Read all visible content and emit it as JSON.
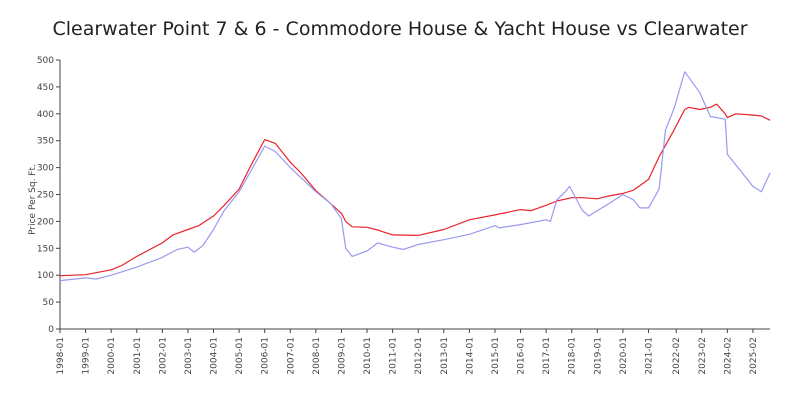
{
  "chart_data": {
    "type": "line",
    "title": "Clearwater Point 7 & 6 - Commodore House & Yacht House vs Clearwater",
    "xlabel": "",
    "ylabel": "Price Per Sq. Ft.",
    "ylim": [
      0,
      500
    ],
    "yticks": [
      0,
      50,
      100,
      150,
      200,
      250,
      300,
      350,
      400,
      450,
      500
    ],
    "xlim": [
      "1998-01",
      "2025-10"
    ],
    "xtick_labels": [
      "1998-01",
      "1999-01",
      "2000-01",
      "2001-01",
      "2002-01",
      "2003-01",
      "2004-01",
      "2005-01",
      "2006-01",
      "2007-01",
      "2008-01",
      "2009-01",
      "2010-01",
      "2011-01",
      "2012-01",
      "2013-01",
      "2014-01",
      "2015-01",
      "2016-01",
      "2017-01",
      "2018-01",
      "2019-01",
      "2020-01",
      "2021-01",
      "2022-02",
      "2023-02",
      "2024-02",
      "2025-02"
    ],
    "grid": false,
    "legend": "none",
    "series": [
      {
        "color": "#e8232a",
        "points": [
          [
            "1998-01",
            99
          ],
          [
            "1999-01",
            101
          ],
          [
            "2000-01",
            110
          ],
          [
            "2000-06",
            118
          ],
          [
            "2001-01",
            135
          ],
          [
            "2002-01",
            160
          ],
          [
            "2002-06",
            175
          ],
          [
            "2003-01",
            185
          ],
          [
            "2003-06",
            192
          ],
          [
            "2004-01",
            210
          ],
          [
            "2004-06",
            230
          ],
          [
            "2005-01",
            260
          ],
          [
            "2005-06",
            300
          ],
          [
            "2006-01",
            352
          ],
          [
            "2006-06",
            345
          ],
          [
            "2007-01",
            310
          ],
          [
            "2007-06",
            290
          ],
          [
            "2008-01",
            257
          ],
          [
            "2008-06",
            240
          ],
          [
            "2009-01",
            215
          ],
          [
            "2009-03",
            200
          ],
          [
            "2009-06",
            190
          ],
          [
            "2010-01",
            189
          ],
          [
            "2010-06",
            184
          ],
          [
            "2011-01",
            175
          ],
          [
            "2012-01",
            174
          ],
          [
            "2013-01",
            185
          ],
          [
            "2014-01",
            203
          ],
          [
            "2015-01",
            212
          ],
          [
            "2016-01",
            222
          ],
          [
            "2016-06",
            220
          ],
          [
            "2017-01",
            230
          ],
          [
            "2017-06",
            238
          ],
          [
            "2018-01",
            244
          ],
          [
            "2018-06",
            244
          ],
          [
            "2019-01",
            242
          ],
          [
            "2019-06",
            247
          ],
          [
            "2020-01",
            252
          ],
          [
            "2020-06",
            258
          ],
          [
            "2021-01",
            278
          ],
          [
            "2021-06",
            320
          ],
          [
            "2022-01",
            370
          ],
          [
            "2022-06",
            408
          ],
          [
            "2022-08",
            412
          ],
          [
            "2023-01",
            408
          ],
          [
            "2023-06",
            412
          ],
          [
            "2023-09",
            418
          ],
          [
            "2024-01",
            400
          ],
          [
            "2024-02",
            393
          ],
          [
            "2024-06",
            400
          ],
          [
            "2025-01",
            398
          ],
          [
            "2025-06",
            396
          ],
          [
            "2025-10",
            388
          ]
        ]
      },
      {
        "color": "#9a9af0",
        "points": [
          [
            "1998-01",
            90
          ],
          [
            "1999-01",
            95
          ],
          [
            "1999-06",
            93
          ],
          [
            "2000-01",
            100
          ],
          [
            "2001-01",
            115
          ],
          [
            "2002-01",
            133
          ],
          [
            "2002-08",
            148
          ],
          [
            "2003-01",
            152
          ],
          [
            "2003-04",
            143
          ],
          [
            "2003-08",
            155
          ],
          [
            "2004-01",
            185
          ],
          [
            "2004-06",
            220
          ],
          [
            "2005-01",
            255
          ],
          [
            "2005-06",
            290
          ],
          [
            "2006-01",
            340
          ],
          [
            "2006-06",
            330
          ],
          [
            "2007-01",
            300
          ],
          [
            "2008-01",
            255
          ],
          [
            "2008-08",
            233
          ],
          [
            "2009-01",
            205
          ],
          [
            "2009-03",
            150
          ],
          [
            "2009-06",
            135
          ],
          [
            "2010-01",
            145
          ],
          [
            "2010-06",
            160
          ],
          [
            "2011-01",
            152
          ],
          [
            "2011-06",
            148
          ],
          [
            "2012-01",
            157
          ],
          [
            "2013-01",
            166
          ],
          [
            "2014-01",
            176
          ],
          [
            "2015-01",
            192
          ],
          [
            "2015-03",
            188
          ],
          [
            "2016-01",
            194
          ],
          [
            "2017-01",
            203
          ],
          [
            "2017-03",
            200
          ],
          [
            "2017-06",
            240
          ],
          [
            "2017-10",
            255
          ],
          [
            "2017-12",
            265
          ],
          [
            "2018-06",
            220
          ],
          [
            "2018-09",
            210
          ],
          [
            "2019-01",
            220
          ],
          [
            "2019-06",
            232
          ],
          [
            "2020-01",
            250
          ],
          [
            "2020-06",
            240
          ],
          [
            "2020-09",
            225
          ],
          [
            "2021-01",
            225
          ],
          [
            "2021-06",
            260
          ],
          [
            "2021-09",
            370
          ],
          [
            "2022-01",
            410
          ],
          [
            "2022-06",
            478
          ],
          [
            "2023-01",
            440
          ],
          [
            "2023-06",
            395
          ],
          [
            "2024-01",
            390
          ],
          [
            "2024-02",
            325
          ],
          [
            "2025-02",
            265
          ],
          [
            "2025-06",
            255
          ],
          [
            "2025-10",
            290
          ]
        ]
      }
    ]
  }
}
